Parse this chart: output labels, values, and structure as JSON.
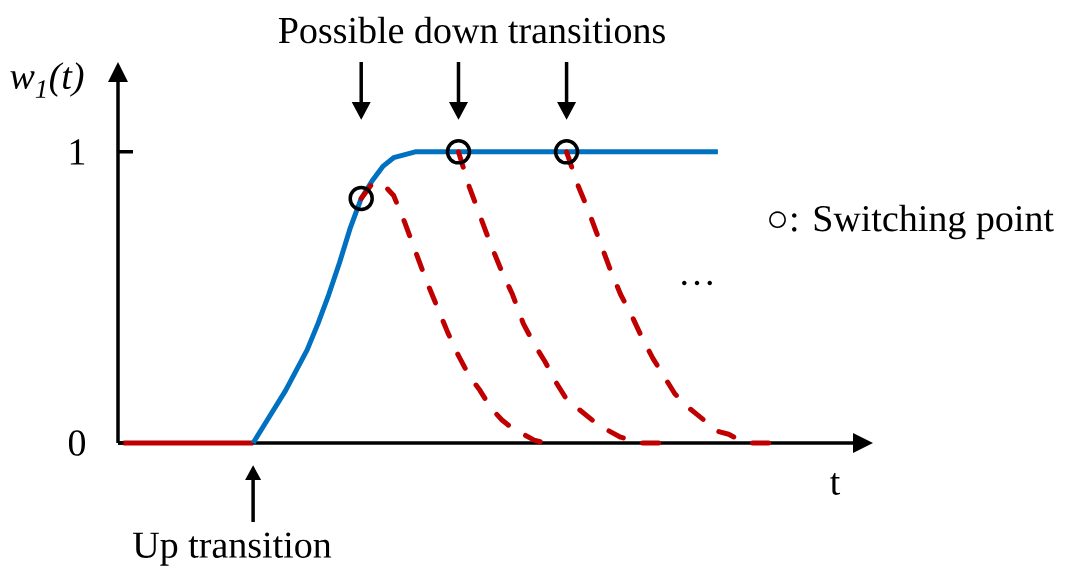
{
  "chart_data": {
    "type": "line",
    "ylabel": "w$_{1}$(t)",
    "xlabel": "t",
    "annotations": [
      "Possible down transitions",
      "Up transition",
      "○: Switching point",
      "…"
    ],
    "categories": [
      null,
      null,
      null,
      null,
      null,
      null,
      null,
      null,
      null,
      null,
      null,
      null,
      null,
      null,
      null,
      null,
      null,
      null,
      null,
      null,
      null,
      null,
      null,
      null,
      null,
      null,
      null,
      null,
      null,
      null,
      null,
      null,
      null,
      null,
      null,
      null,
      null,
      null,
      null,
      null,
      null,
      null,
      null,
      null,
      null,
      null,
      null,
      null,
      null,
      null,
      null,
      null,
      null,
      null,
      null,
      null,
      null,
      null,
      null,
      null,
      null,
      null,
      null,
      null,
      null,
      null,
      null,
      null
    ],
    "ylim": [
      0,
      1.24
    ],
    "yticks": [
      0,
      1
    ],
    "series": [
      {
        "color": "#c00000",
        "line_style": "solid",
        "marker": "none",
        "values": [
          0,
          0,
          0,
          0,
          0,
          0,
          0,
          0,
          0,
          0,
          0,
          0,
          0,
          null,
          null,
          null,
          null,
          null,
          null,
          null,
          null,
          null,
          null,
          null,
          null,
          null,
          null,
          null,
          null,
          null,
          null,
          null,
          null,
          null,
          null,
          null,
          null,
          null,
          null,
          null,
          null,
          null,
          null,
          null,
          null,
          null,
          null,
          null,
          null,
          null,
          null,
          null,
          null,
          null,
          null,
          null,
          null,
          null,
          null,
          null,
          null,
          null,
          null,
          null,
          null,
          null,
          null,
          null
        ]
      },
      {
        "color": "#0070c0",
        "line_style": "solid",
        "marker": "none",
        "values": [
          null,
          null,
          null,
          null,
          null,
          null,
          null,
          null,
          null,
          null,
          null,
          null,
          0,
          0.06,
          0.12,
          0.18,
          0.25,
          0.32,
          0.41,
          0.51,
          0.62,
          0.74,
          0.84,
          0.9,
          0.95,
          0.98,
          0.99,
          1,
          1,
          1,
          1,
          1,
          1,
          1,
          1,
          1,
          1,
          1,
          1,
          1,
          1,
          1,
          1,
          1,
          1,
          1,
          1,
          1,
          1,
          1,
          1,
          1,
          1,
          1,
          1,
          1,
          null,
          null,
          null,
          null,
          null,
          null,
          null,
          null,
          null,
          null,
          null,
          null
        ]
      },
      {
        "color": "#c00000",
        "line_style": "dashed",
        "marker": "none",
        "values": [
          null,
          null,
          null,
          null,
          null,
          null,
          null,
          null,
          null,
          null,
          null,
          null,
          null,
          null,
          null,
          null,
          null,
          null,
          null,
          null,
          null,
          null,
          0.84,
          0.89,
          0.89,
          0.85,
          0.76,
          0.66,
          0.56,
          0.47,
          0.38,
          0.3,
          0.23,
          0.18,
          0.12,
          0.08,
          0.05,
          0.03,
          0.01,
          0,
          null,
          null,
          null,
          null,
          null,
          null,
          null,
          null,
          null,
          null,
          null,
          null,
          null,
          null,
          null,
          null,
          null,
          null,
          null,
          null,
          null,
          null,
          null,
          null,
          null,
          null,
          null,
          null
        ]
      },
      {
        "color": "#c00000",
        "line_style": "dashed",
        "marker": "none",
        "values": [
          null,
          null,
          null,
          null,
          null,
          null,
          null,
          null,
          null,
          null,
          null,
          null,
          null,
          null,
          null,
          null,
          null,
          null,
          null,
          null,
          null,
          null,
          null,
          null,
          null,
          null,
          null,
          null,
          null,
          null,
          null,
          1,
          0.88,
          0.78,
          0.68,
          0.59,
          0.51,
          0.41,
          0.34,
          0.28,
          0.21,
          0.15,
          0.12,
          0.09,
          0.06,
          0.04,
          0.02,
          0.01,
          0,
          0,
          0,
          null,
          null,
          null,
          null,
          null,
          null,
          null,
          null,
          null,
          null,
          null,
          null,
          null,
          null,
          null,
          null,
          null
        ]
      },
      {
        "color": "#c00000",
        "line_style": "dashed",
        "marker": "none",
        "values": [
          null,
          null,
          null,
          null,
          null,
          null,
          null,
          null,
          null,
          null,
          null,
          null,
          null,
          null,
          null,
          null,
          null,
          null,
          null,
          null,
          null,
          null,
          null,
          null,
          null,
          null,
          null,
          null,
          null,
          null,
          null,
          null,
          null,
          null,
          null,
          null,
          null,
          null,
          null,
          null,
          null,
          1,
          0.89,
          0.8,
          0.7,
          0.6,
          0.51,
          0.44,
          0.36,
          0.29,
          0.23,
          0.17,
          0.13,
          0.1,
          0.07,
          0.04,
          0.03,
          0.01,
          0,
          0,
          0,
          null,
          null,
          null,
          null,
          null,
          null,
          null
        ]
      },
      {
        "type": "scatter",
        "color": "#000000",
        "marker": "circle",
        "values": [
          null,
          null,
          null,
          null,
          null,
          null,
          null,
          null,
          null,
          null,
          null,
          null,
          null,
          null,
          null,
          null,
          null,
          null,
          null,
          null,
          null,
          null,
          0.84,
          null,
          null,
          null,
          null,
          null,
          null,
          null,
          null,
          1,
          null,
          null,
          null,
          null,
          null,
          null,
          null,
          null,
          null,
          1,
          null,
          null,
          null,
          null,
          null,
          null,
          null,
          null,
          null,
          null,
          null,
          null,
          null,
          null,
          null,
          null,
          null,
          null,
          null,
          null,
          null,
          null,
          null,
          null,
          null,
          null
        ]
      }
    ]
  }
}
